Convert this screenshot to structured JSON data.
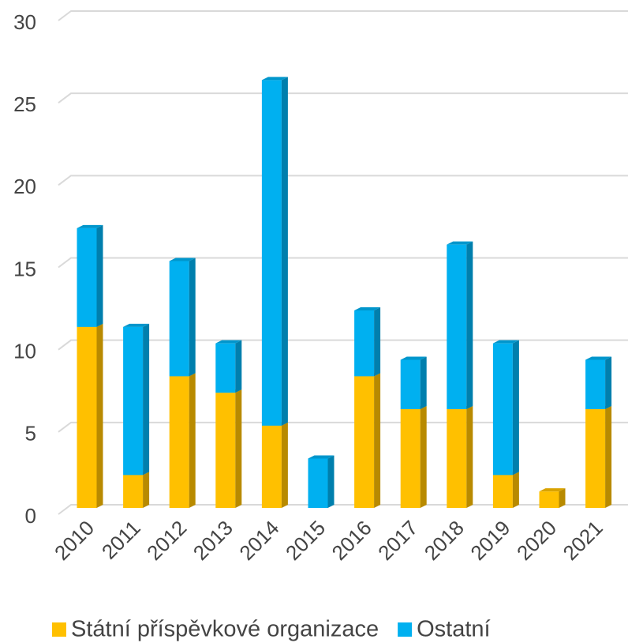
{
  "chart_data": {
    "type": "bar3d_stacked",
    "categories": [
      "2010",
      "2011",
      "2012",
      "2013",
      "2014",
      "2015",
      "2016",
      "2017",
      "2018",
      "2019",
      "2020",
      "2021"
    ],
    "series": [
      {
        "name": "Státní příspěvkové organizace",
        "color": "#ffc000",
        "values": [
          11,
          2,
          8,
          7,
          5,
          0,
          8,
          6,
          6,
          2,
          1,
          6
        ]
      },
      {
        "name": "Ostatní",
        "color": "#00b0f0",
        "values": [
          6,
          9,
          7,
          3,
          21,
          3,
          4,
          3,
          10,
          8,
          0,
          3
        ]
      }
    ],
    "ylim": [
      0,
      30
    ],
    "yticks": [
      0,
      5,
      10,
      15,
      20,
      25,
      30
    ],
    "grid": true,
    "legend": "bottom"
  }
}
